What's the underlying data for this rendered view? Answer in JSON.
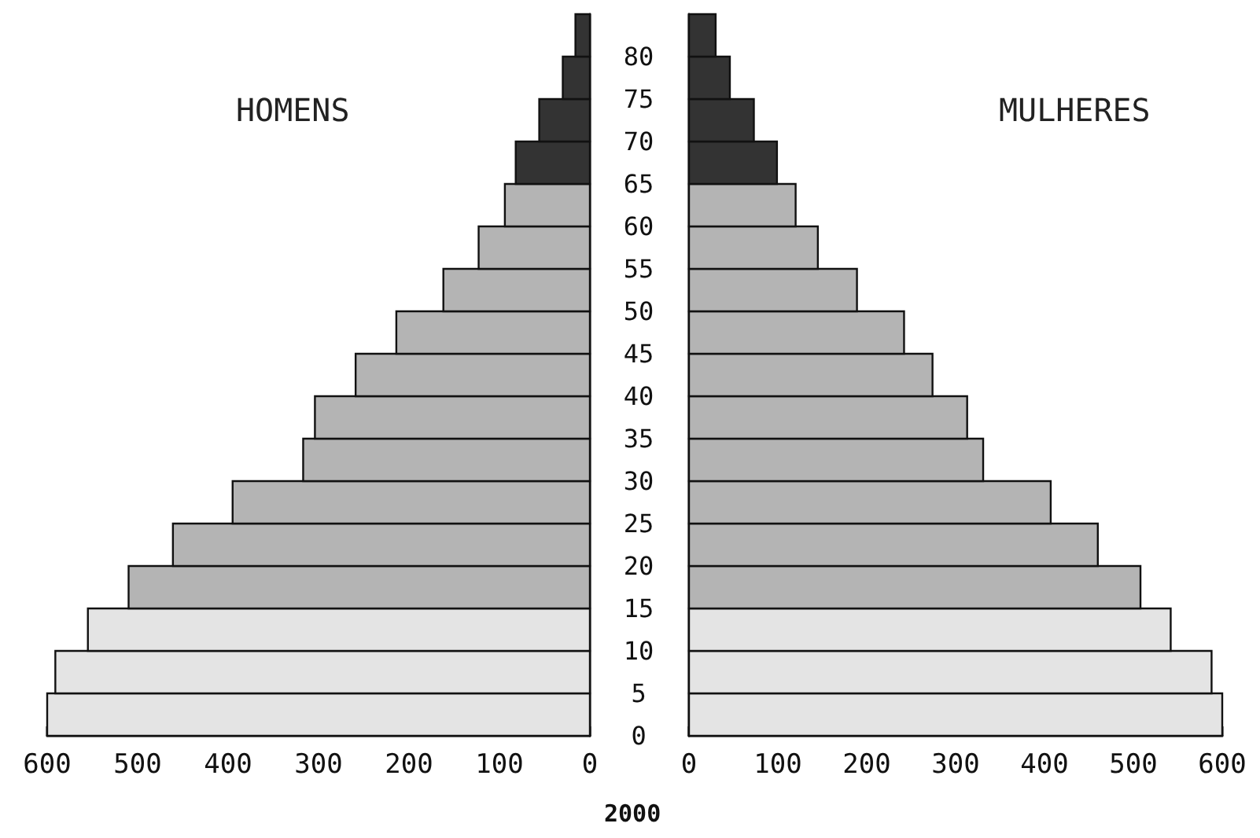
{
  "chart_data": [
    {
      "type": "histogram",
      "orientation": "horizontal",
      "title": "HOMENS",
      "bins": [
        0,
        5,
        10,
        15,
        20,
        25,
        30,
        35,
        40,
        45,
        50,
        55,
        60,
        65,
        70,
        75,
        80,
        85
      ],
      "values": [
        600,
        591,
        555,
        510,
        461,
        395,
        317,
        304,
        259,
        214,
        162,
        123,
        94,
        82,
        56,
        30,
        16
      ],
      "colors": [
        "#e4e4e4",
        "#e4e4e4",
        "#e4e4e4",
        "#b4b4b4",
        "#b4b4b4",
        "#b4b4b4",
        "#b4b4b4",
        "#b4b4b4",
        "#b4b4b4",
        "#b4b4b4",
        "#b4b4b4",
        "#b4b4b4",
        "#b4b4b4",
        "#333333",
        "#333333",
        "#333333",
        "#333333"
      ],
      "xlim": [
        600,
        0
      ],
      "xticks": [
        600,
        500,
        400,
        300,
        200,
        100,
        0
      ],
      "ylim": [
        0,
        85
      ],
      "yticks": [
        0,
        5,
        10,
        15,
        20,
        25,
        30,
        35,
        40,
        45,
        50,
        55,
        60,
        65,
        70,
        75,
        80
      ],
      "tick_labels": "x",
      "annotations": [
        "2000"
      ]
    },
    {
      "type": "histogram",
      "orientation": "horizontal",
      "title": "MULHERES",
      "bins": [
        0,
        5,
        10,
        15,
        20,
        25,
        30,
        35,
        40,
        45,
        50,
        55,
        60,
        65,
        70,
        75,
        80,
        85
      ],
      "values": [
        600,
        588,
        542,
        508,
        460,
        407,
        331,
        313,
        274,
        242,
        189,
        145,
        120,
        99,
        73,
        46,
        30
      ],
      "colors": [
        "#e4e4e4",
        "#e4e4e4",
        "#e4e4e4",
        "#b4b4b4",
        "#b4b4b4",
        "#b4b4b4",
        "#b4b4b4",
        "#b4b4b4",
        "#b4b4b4",
        "#b4b4b4",
        "#b4b4b4",
        "#b4b4b4",
        "#b4b4b4",
        "#333333",
        "#333333",
        "#333333",
        "#333333"
      ],
      "xlim": [
        0,
        600
      ],
      "xticks": [
        0,
        100,
        200,
        300,
        400,
        500,
        600
      ],
      "ylim": [
        0,
        85
      ],
      "yticks": [
        0,
        5,
        10,
        15,
        20,
        25,
        30,
        35,
        40,
        45,
        50,
        55,
        60,
        65,
        70,
        75,
        80
      ]
    }
  ]
}
